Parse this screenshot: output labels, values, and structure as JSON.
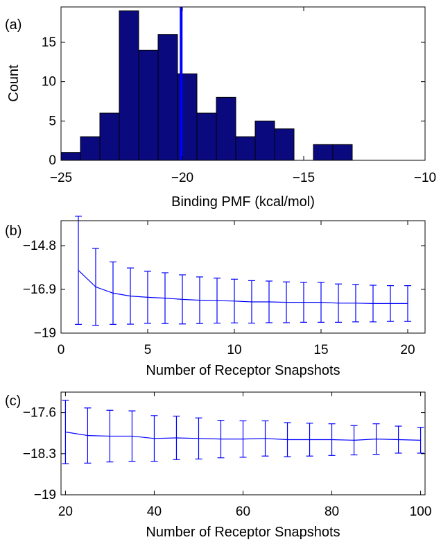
{
  "colors": {
    "bar_fill": "#0a0a7e",
    "mean_line": "#0000ff",
    "series_line": "#0000ff"
  },
  "chart_data": [
    {
      "panel_label": "(a)",
      "type": "bar",
      "xlabel": "Binding PMF (kcal/mol)",
      "ylabel": "Count",
      "xlim": [
        -25,
        -10
      ],
      "ylim": [
        0,
        19.5
      ],
      "xticks": [
        "−25",
        "−20",
        "−15",
        "−10"
      ],
      "xtick_values": [
        -25,
        -20,
        -15,
        -10
      ],
      "yticks": [
        "0",
        "5",
        "10",
        "15"
      ],
      "ytick_values": [
        0,
        5,
        10,
        15
      ],
      "bin_width": 0.8,
      "bins": [
        {
          "center": -24.6,
          "count": 1
        },
        {
          "center": -23.8,
          "count": 3
        },
        {
          "center": -23.0,
          "count": 6
        },
        {
          "center": -22.2,
          "count": 19
        },
        {
          "center": -21.4,
          "count": 14
        },
        {
          "center": -20.6,
          "count": 16
        },
        {
          "center": -19.8,
          "count": 11
        },
        {
          "center": -19.0,
          "count": 6
        },
        {
          "center": -18.2,
          "count": 8
        },
        {
          "center": -17.4,
          "count": 3
        },
        {
          "center": -16.6,
          "count": 5
        },
        {
          "center": -15.8,
          "count": 4
        },
        {
          "center": -15.0,
          "count": 0
        },
        {
          "center": -14.2,
          "count": 2
        },
        {
          "center": -13.4,
          "count": 2
        }
      ],
      "mean_line_x": -20.05
    },
    {
      "panel_label": "(b)",
      "type": "line",
      "xlabel": "Number of Receptor Snapshots",
      "ylabel": "",
      "xlim": [
        0,
        21
      ],
      "ylim": [
        -19,
        -13.6
      ],
      "xticks": [
        "0",
        "5",
        "10",
        "15",
        "20"
      ],
      "xtick_values": [
        0,
        5,
        10,
        15,
        20
      ],
      "yticks": [
        "−19",
        "−16.9",
        "−14.8"
      ],
      "ytick_values": [
        -19,
        -16.9,
        -14.8
      ],
      "x": [
        1,
        2,
        3,
        4,
        5,
        6,
        7,
        8,
        9,
        10,
        11,
        12,
        13,
        14,
        15,
        16,
        17,
        18,
        19,
        20
      ],
      "y": [
        -15.98,
        -16.78,
        -17.08,
        -17.22,
        -17.28,
        -17.32,
        -17.38,
        -17.42,
        -17.44,
        -17.46,
        -17.5,
        -17.5,
        -17.52,
        -17.52,
        -17.52,
        -17.56,
        -17.56,
        -17.58,
        -17.58,
        -17.58
      ],
      "error": [
        2.6,
        1.85,
        1.5,
        1.35,
        1.25,
        1.22,
        1.18,
        1.12,
        1.08,
        1.05,
        1.02,
        1.0,
        0.98,
        0.96,
        0.96,
        0.92,
        0.9,
        0.88,
        0.86,
        0.86
      ]
    },
    {
      "panel_label": "(c)",
      "type": "line",
      "xlabel": "Number of Receptor Snapshots",
      "ylabel": "",
      "xlim": [
        19,
        101
      ],
      "ylim": [
        -19,
        -17.25
      ],
      "xticks": [
        "20",
        "40",
        "60",
        "80",
        "100"
      ],
      "xtick_values": [
        20,
        40,
        60,
        80,
        100
      ],
      "yticks": [
        "−19",
        "−18.3",
        "−17.6"
      ],
      "ytick_values": [
        -19,
        -18.3,
        -17.6
      ],
      "x": [
        20,
        25,
        30,
        35,
        40,
        45,
        50,
        55,
        60,
        65,
        70,
        75,
        80,
        85,
        90,
        95,
        100
      ],
      "y": [
        -17.93,
        -17.99,
        -18.0,
        -18.0,
        -18.04,
        -18.03,
        -18.04,
        -18.05,
        -18.05,
        -18.04,
        -18.06,
        -18.06,
        -18.06,
        -18.07,
        -18.05,
        -18.06,
        -18.07
      ],
      "error": [
        0.54,
        0.47,
        0.44,
        0.43,
        0.39,
        0.37,
        0.35,
        0.32,
        0.31,
        0.3,
        0.29,
        0.28,
        0.27,
        0.25,
        0.26,
        0.23,
        0.22
      ]
    }
  ]
}
